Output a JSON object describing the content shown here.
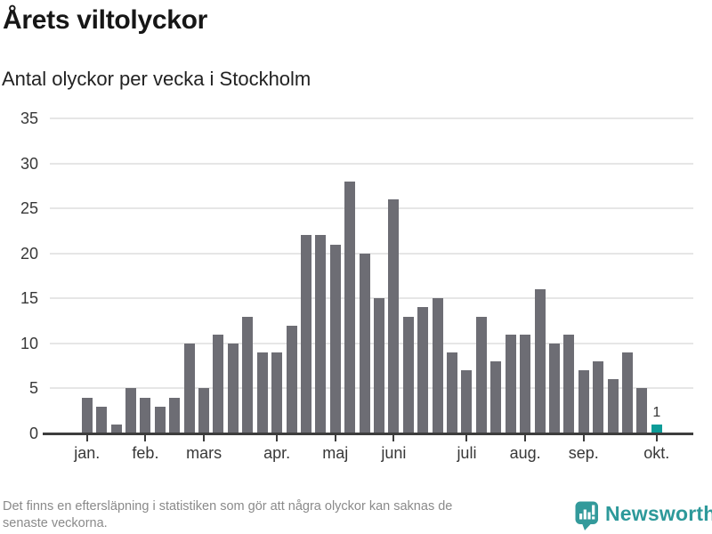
{
  "header": {
    "title": "Årets viltolyckor",
    "subtitle": "Antal olyckor per vecka i Stockholm"
  },
  "chart_data": {
    "type": "bar",
    "title": "Årets viltolyckor",
    "subtitle": "Antal olyckor per vecka i Stockholm",
    "x_unit": "vecka",
    "values": [
      4,
      3,
      1,
      5,
      4,
      3,
      4,
      10,
      5,
      11,
      10,
      13,
      9,
      9,
      12,
      22,
      22,
      21,
      28,
      20,
      15,
      26,
      13,
      14,
      15,
      9,
      7,
      13,
      8,
      11,
      11,
      16,
      10,
      11,
      7,
      8,
      6,
      9,
      5,
      1
    ],
    "highlight_last_index": 39,
    "highlight_value_label": "1",
    "y_ticks": [
      0,
      5,
      10,
      15,
      20,
      25,
      30,
      35
    ],
    "ylim": [
      0,
      35
    ],
    "grid": "horizontal",
    "legend": "none",
    "month_ticks": [
      {
        "label": "jan.",
        "week_index": 0
      },
      {
        "label": "feb.",
        "week_index": 4
      },
      {
        "label": "mars",
        "week_index": 8
      },
      {
        "label": "apr.",
        "week_index": 13
      },
      {
        "label": "maj",
        "week_index": 17
      },
      {
        "label": "juni",
        "week_index": 21
      },
      {
        "label": "juli",
        "week_index": 26
      },
      {
        "label": "aug.",
        "week_index": 30
      },
      {
        "label": "sep.",
        "week_index": 34
      },
      {
        "label": "okt.",
        "week_index": 39
      }
    ],
    "colors": {
      "bar": "#6d6d74",
      "highlight": "#0d9c98",
      "grid": "#e6e6e6",
      "axis": "#3d3d3d",
      "tick_label": "#383838"
    }
  },
  "footer": {
    "note_lines": [
      "Det finns en eftersläpning i statistiken som gör att några olyckor kan saknas de",
      "senaste veckorna."
    ],
    "brand": "Newsworthy",
    "brand_color": "#2d999a",
    "logo_color": "#339a9b"
  }
}
